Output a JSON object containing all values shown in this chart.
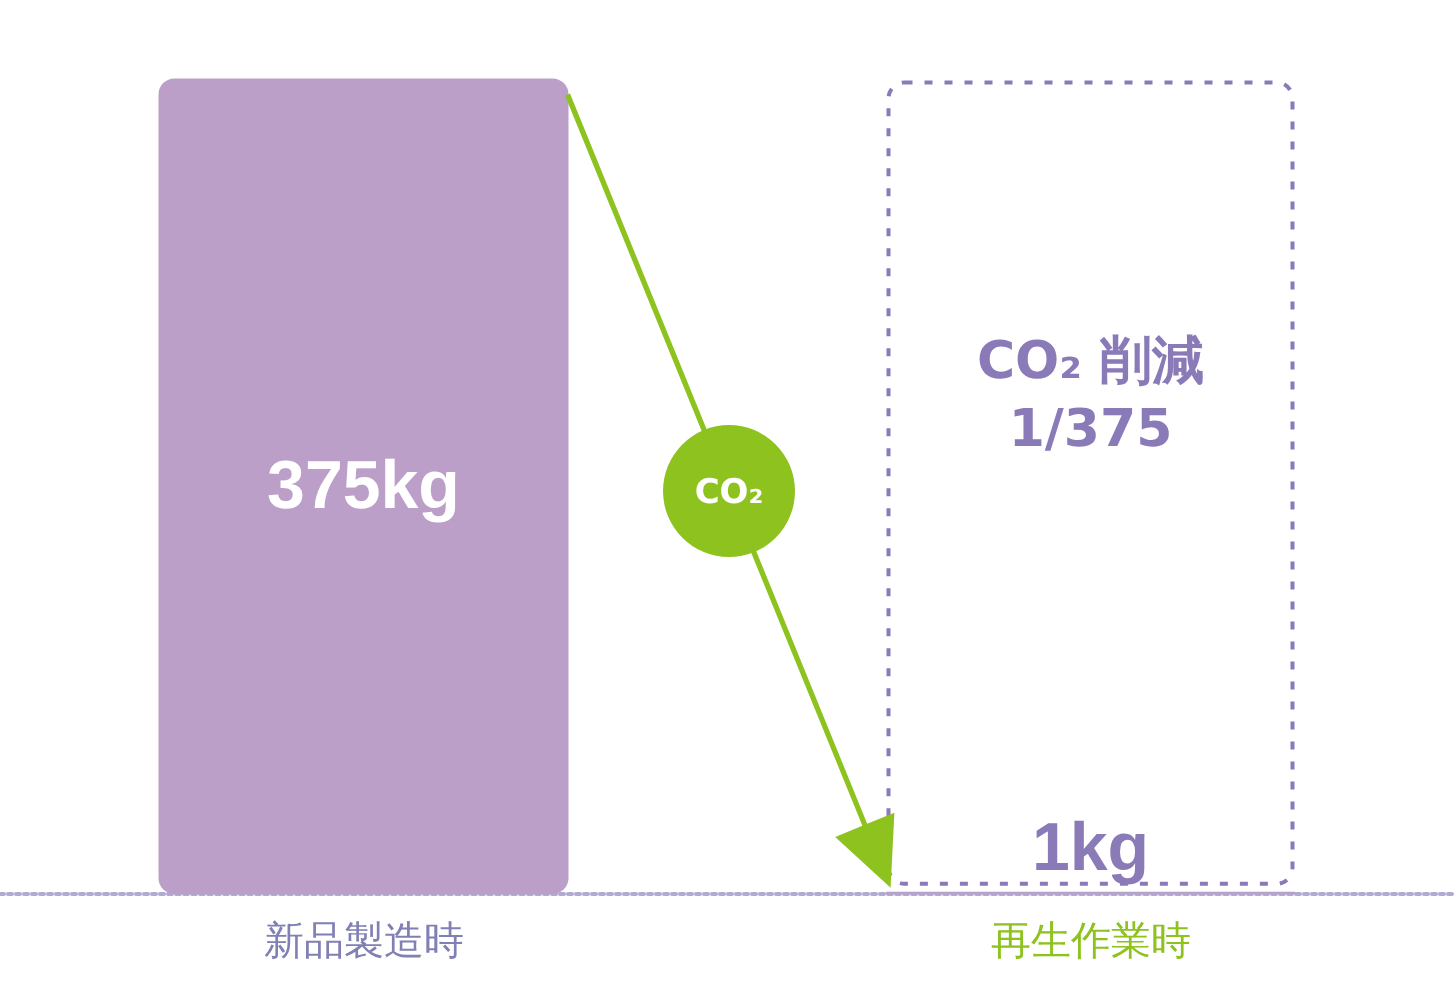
{
  "chart_data": {
    "type": "bar",
    "categories": [
      "新品製造時",
      "再生作業時"
    ],
    "values": [
      375,
      1
    ],
    "value_labels": [
      "375kg",
      "1kg"
    ],
    "colors": [
      "#bb9fc9",
      "#bb9fc9"
    ],
    "annotations": [
      "CO₂",
      "CO₂ 削減 1/375"
    ]
  }
}
